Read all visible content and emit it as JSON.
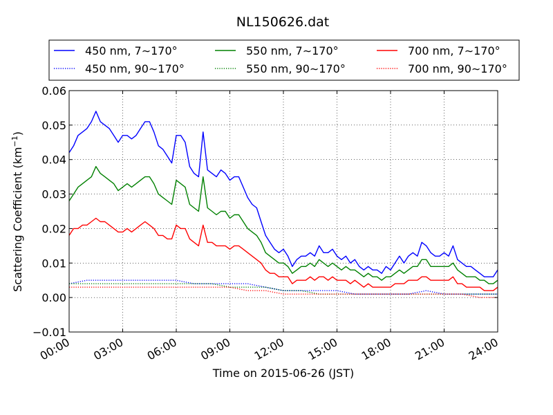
{
  "chart_data": {
    "type": "line",
    "title": "NL150626.dat",
    "xlabel": "Time on 2015-06-26 (JST)",
    "ylabel": "Scattering Coefficient (km",
    "ylabel_sup": "−1",
    "ylabel_close": ")",
    "x_unit": "hours",
    "xlim": [
      0,
      24
    ],
    "ylim": [
      -0.01,
      0.06
    ],
    "grid": true,
    "legend_position": "top",
    "x_ticks": [
      {
        "value": 0,
        "label": "00:00"
      },
      {
        "value": 3,
        "label": "03:00"
      },
      {
        "value": 6,
        "label": "06:00"
      },
      {
        "value": 9,
        "label": "09:00"
      },
      {
        "value": 12,
        "label": "12:00"
      },
      {
        "value": 15,
        "label": "15:00"
      },
      {
        "value": 18,
        "label": "18:00"
      },
      {
        "value": 21,
        "label": "21:00"
      },
      {
        "value": 24,
        "label": "24:00"
      }
    ],
    "y_ticks": [
      {
        "value": -0.01,
        "label": "−0.01"
      },
      {
        "value": 0.0,
        "label": "0.00"
      },
      {
        "value": 0.01,
        "label": "0.01"
      },
      {
        "value": 0.02,
        "label": "0.02"
      },
      {
        "value": 0.03,
        "label": "0.03"
      },
      {
        "value": 0.04,
        "label": "0.04"
      },
      {
        "value": 0.05,
        "label": "0.05"
      },
      {
        "value": 0.06,
        "label": "0.06"
      }
    ],
    "series": [
      {
        "name": "450 nm, 7∼170°",
        "color": "#0000ff",
        "style": "solid",
        "x": [
          0,
          0.25,
          0.5,
          0.75,
          1,
          1.25,
          1.5,
          1.75,
          2,
          2.25,
          2.5,
          2.75,
          3,
          3.25,
          3.5,
          3.75,
          4,
          4.25,
          4.5,
          4.75,
          5,
          5.25,
          5.5,
          5.75,
          6,
          6.25,
          6.5,
          6.75,
          7,
          7.25,
          7.5,
          7.75,
          8,
          8.25,
          8.5,
          8.75,
          9,
          9.25,
          9.5,
          9.75,
          10,
          10.25,
          10.5,
          10.75,
          11,
          11.25,
          11.5,
          11.75,
          12,
          12.25,
          12.5,
          12.75,
          13,
          13.25,
          13.5,
          13.75,
          14,
          14.25,
          14.5,
          14.75,
          15,
          15.25,
          15.5,
          15.75,
          16,
          16.25,
          16.5,
          16.75,
          17,
          17.25,
          17.5,
          17.75,
          18,
          18.25,
          18.5,
          18.75,
          19,
          19.25,
          19.5,
          19.75,
          20,
          20.25,
          20.5,
          20.75,
          21,
          21.25,
          21.5,
          21.75,
          22,
          22.25,
          22.5,
          22.75,
          23,
          23.25,
          23.5,
          23.75,
          24
        ],
        "values": [
          0.042,
          0.044,
          0.047,
          0.048,
          0.049,
          0.051,
          0.054,
          0.051,
          0.05,
          0.049,
          0.047,
          0.045,
          0.047,
          0.047,
          0.046,
          0.047,
          0.049,
          0.051,
          0.051,
          0.048,
          0.044,
          0.043,
          0.041,
          0.039,
          0.047,
          0.047,
          0.045,
          0.038,
          0.036,
          0.035,
          0.048,
          0.037,
          0.036,
          0.035,
          0.037,
          0.036,
          0.034,
          0.035,
          0.035,
          0.032,
          0.029,
          0.027,
          0.026,
          0.022,
          0.018,
          0.016,
          0.014,
          0.013,
          0.014,
          0.012,
          0.009,
          0.011,
          0.012,
          0.012,
          0.013,
          0.012,
          0.015,
          0.013,
          0.013,
          0.014,
          0.012,
          0.011,
          0.012,
          0.01,
          0.011,
          0.009,
          0.008,
          0.009,
          0.008,
          0.008,
          0.007,
          0.009,
          0.008,
          0.01,
          0.012,
          0.01,
          0.012,
          0.013,
          0.012,
          0.016,
          0.015,
          0.013,
          0.012,
          0.012,
          0.013,
          0.012,
          0.015,
          0.011,
          0.01,
          0.009,
          0.009,
          0.008,
          0.007,
          0.006,
          0.006,
          0.006,
          0.008
        ]
      },
      {
        "name": "550 nm, 7∼170°",
        "color": "#008000",
        "style": "solid",
        "x": [
          0,
          0.25,
          0.5,
          0.75,
          1,
          1.25,
          1.5,
          1.75,
          2,
          2.25,
          2.5,
          2.75,
          3,
          3.25,
          3.5,
          3.75,
          4,
          4.25,
          4.5,
          4.75,
          5,
          5.25,
          5.5,
          5.75,
          6,
          6.25,
          6.5,
          6.75,
          7,
          7.25,
          7.5,
          7.75,
          8,
          8.25,
          8.5,
          8.75,
          9,
          9.25,
          9.5,
          9.75,
          10,
          10.25,
          10.5,
          10.75,
          11,
          11.25,
          11.5,
          11.75,
          12,
          12.25,
          12.5,
          12.75,
          13,
          13.25,
          13.5,
          13.75,
          14,
          14.25,
          14.5,
          14.75,
          15,
          15.25,
          15.5,
          15.75,
          16,
          16.25,
          16.5,
          16.75,
          17,
          17.25,
          17.5,
          17.75,
          18,
          18.25,
          18.5,
          18.75,
          19,
          19.25,
          19.5,
          19.75,
          20,
          20.25,
          20.5,
          20.75,
          21,
          21.25,
          21.5,
          21.75,
          22,
          22.25,
          22.5,
          22.75,
          23,
          23.25,
          23.5,
          23.75,
          24
        ],
        "values": [
          0.028,
          0.03,
          0.032,
          0.033,
          0.034,
          0.035,
          0.038,
          0.036,
          0.035,
          0.034,
          0.033,
          0.031,
          0.032,
          0.033,
          0.032,
          0.033,
          0.034,
          0.035,
          0.035,
          0.033,
          0.03,
          0.029,
          0.028,
          0.027,
          0.034,
          0.033,
          0.032,
          0.027,
          0.026,
          0.025,
          0.035,
          0.026,
          0.025,
          0.024,
          0.025,
          0.025,
          0.023,
          0.024,
          0.024,
          0.022,
          0.02,
          0.019,
          0.018,
          0.016,
          0.013,
          0.012,
          0.011,
          0.01,
          0.01,
          0.009,
          0.007,
          0.008,
          0.009,
          0.009,
          0.01,
          0.009,
          0.011,
          0.01,
          0.009,
          0.01,
          0.009,
          0.008,
          0.009,
          0.008,
          0.008,
          0.007,
          0.006,
          0.007,
          0.006,
          0.006,
          0.005,
          0.006,
          0.006,
          0.007,
          0.008,
          0.007,
          0.008,
          0.009,
          0.009,
          0.011,
          0.011,
          0.009,
          0.009,
          0.009,
          0.009,
          0.009,
          0.01,
          0.008,
          0.007,
          0.006,
          0.006,
          0.006,
          0.005,
          0.005,
          0.004,
          0.004,
          0.005
        ]
      },
      {
        "name": "700 nm, 7∼170°",
        "color": "#ff0000",
        "style": "solid",
        "x": [
          0,
          0.25,
          0.5,
          0.75,
          1,
          1.25,
          1.5,
          1.75,
          2,
          2.25,
          2.5,
          2.75,
          3,
          3.25,
          3.5,
          3.75,
          4,
          4.25,
          4.5,
          4.75,
          5,
          5.25,
          5.5,
          5.75,
          6,
          6.25,
          6.5,
          6.75,
          7,
          7.25,
          7.5,
          7.75,
          8,
          8.25,
          8.5,
          8.75,
          9,
          9.25,
          9.5,
          9.75,
          10,
          10.25,
          10.5,
          10.75,
          11,
          11.25,
          11.5,
          11.75,
          12,
          12.25,
          12.5,
          12.75,
          13,
          13.25,
          13.5,
          13.75,
          14,
          14.25,
          14.5,
          14.75,
          15,
          15.25,
          15.5,
          15.75,
          16,
          16.25,
          16.5,
          16.75,
          17,
          17.25,
          17.5,
          17.75,
          18,
          18.25,
          18.5,
          18.75,
          19,
          19.25,
          19.5,
          19.75,
          20,
          20.25,
          20.5,
          20.75,
          21,
          21.25,
          21.5,
          21.75,
          22,
          22.25,
          22.5,
          22.75,
          23,
          23.25,
          23.5,
          23.75,
          24
        ],
        "values": [
          0.018,
          0.02,
          0.02,
          0.021,
          0.021,
          0.022,
          0.023,
          0.022,
          0.022,
          0.021,
          0.02,
          0.019,
          0.019,
          0.02,
          0.019,
          0.02,
          0.021,
          0.022,
          0.021,
          0.02,
          0.018,
          0.018,
          0.017,
          0.017,
          0.021,
          0.02,
          0.02,
          0.017,
          0.016,
          0.015,
          0.021,
          0.016,
          0.016,
          0.015,
          0.015,
          0.015,
          0.014,
          0.015,
          0.015,
          0.014,
          0.013,
          0.012,
          0.011,
          0.01,
          0.008,
          0.007,
          0.007,
          0.006,
          0.006,
          0.006,
          0.004,
          0.005,
          0.005,
          0.005,
          0.006,
          0.005,
          0.006,
          0.006,
          0.005,
          0.006,
          0.005,
          0.005,
          0.005,
          0.004,
          0.005,
          0.004,
          0.003,
          0.004,
          0.003,
          0.003,
          0.003,
          0.003,
          0.003,
          0.004,
          0.004,
          0.004,
          0.005,
          0.005,
          0.005,
          0.006,
          0.006,
          0.005,
          0.005,
          0.005,
          0.005,
          0.005,
          0.006,
          0.004,
          0.004,
          0.003,
          0.003,
          0.003,
          0.003,
          0.002,
          0.002,
          0.002,
          0.003
        ]
      },
      {
        "name": "450 nm, 90∼170°",
        "color": "#0000ff",
        "style": "dotted",
        "x": [
          0,
          1,
          2,
          3,
          4,
          5,
          6,
          7,
          8,
          9,
          10,
          11,
          12,
          13,
          14,
          15,
          16,
          17,
          18,
          19,
          20,
          21,
          22,
          23,
          24
        ],
        "values": [
          0.004,
          0.005,
          0.005,
          0.005,
          0.005,
          0.005,
          0.005,
          0.004,
          0.004,
          0.004,
          0.004,
          0.003,
          0.002,
          0.002,
          0.002,
          0.002,
          0.001,
          0.001,
          0.001,
          0.001,
          0.002,
          0.001,
          0.001,
          0.001,
          0.001
        ]
      },
      {
        "name": "550 nm, 90∼170°",
        "color": "#008000",
        "style": "dotted",
        "x": [
          0,
          1,
          2,
          3,
          4,
          5,
          6,
          7,
          8,
          9,
          10,
          11,
          12,
          13,
          14,
          15,
          16,
          17,
          18,
          19,
          20,
          21,
          22,
          23,
          24
        ],
        "values": [
          0.004,
          0.004,
          0.004,
          0.004,
          0.004,
          0.004,
          0.004,
          0.004,
          0.004,
          0.003,
          0.003,
          0.003,
          0.002,
          0.002,
          0.001,
          0.001,
          0.001,
          0.001,
          0.001,
          0.001,
          0.001,
          0.001,
          0.001,
          0.001,
          0.001
        ]
      },
      {
        "name": "700 nm, 90∼170°",
        "color": "#ff0000",
        "style": "dotted",
        "x": [
          0,
          1,
          2,
          3,
          4,
          5,
          6,
          7,
          8,
          9,
          10,
          11,
          12,
          13,
          14,
          15,
          16,
          17,
          18,
          19,
          20,
          21,
          22,
          23,
          24
        ],
        "values": [
          0.003,
          0.003,
          0.003,
          0.003,
          0.003,
          0.003,
          0.003,
          0.003,
          0.003,
          0.003,
          0.002,
          0.002,
          0.001,
          0.001,
          0.001,
          0.001,
          0.001,
          0.001,
          0.001,
          0.001,
          0.001,
          0.001,
          0.001,
          0.0,
          0.0
        ]
      }
    ]
  }
}
